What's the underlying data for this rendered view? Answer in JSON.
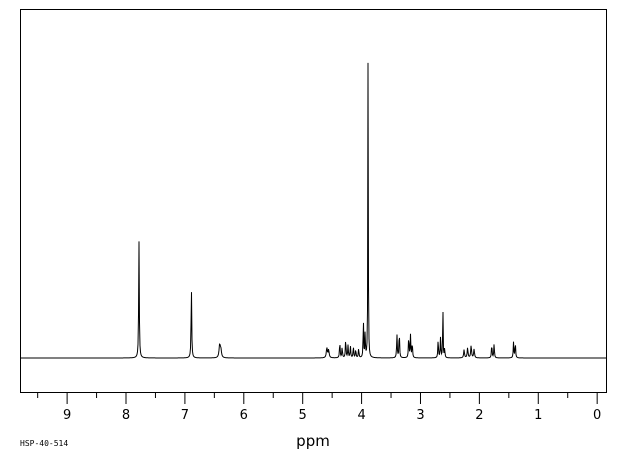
{
  "chart_data": {
    "type": "line",
    "title": "",
    "xlabel": "ppm",
    "ylabel": "",
    "xlim": [
      9.8,
      -0.15
    ],
    "ylim": [
      -0.1,
      1.0
    ],
    "x_reversed": true,
    "grid": false,
    "ticks": [
      "9",
      "8",
      "7",
      "6",
      "5",
      "4",
      "3",
      "2",
      "1",
      "0"
    ],
    "series": [
      {
        "peaks": [
          {
            "ppm": 7.78,
            "h": 0.37,
            "w": 0.006
          },
          {
            "ppm": 6.89,
            "h": 0.23,
            "w": 0.006
          },
          {
            "ppm": 6.41,
            "h": 0.04,
            "w": 0.012
          },
          {
            "ppm": 6.39,
            "h": 0.025,
            "w": 0.012
          },
          {
            "ppm": 4.59,
            "h": 0.032,
            "w": 0.01
          },
          {
            "ppm": 4.56,
            "h": 0.025,
            "w": 0.01
          },
          {
            "ppm": 4.37,
            "h": 0.052,
            "w": 0.006
          },
          {
            "ppm": 4.33,
            "h": 0.035,
            "w": 0.006
          },
          {
            "ppm": 4.27,
            "h": 0.062,
            "w": 0.006
          },
          {
            "ppm": 4.23,
            "h": 0.04,
            "w": 0.006
          },
          {
            "ppm": 4.19,
            "h": 0.038,
            "w": 0.006
          },
          {
            "ppm": 4.14,
            "h": 0.036,
            "w": 0.006
          },
          {
            "ppm": 4.1,
            "h": 0.028,
            "w": 0.006
          },
          {
            "ppm": 4.05,
            "h": 0.03,
            "w": 0.006
          },
          {
            "ppm": 3.97,
            "h": 0.13,
            "w": 0.005
          },
          {
            "ppm": 3.94,
            "h": 0.085,
            "w": 0.005
          },
          {
            "ppm": 3.89,
            "h": 1.0,
            "w": 0.004
          },
          {
            "ppm": 3.4,
            "h": 0.075,
            "w": 0.006
          },
          {
            "ppm": 3.36,
            "h": 0.085,
            "w": 0.006
          },
          {
            "ppm": 3.2,
            "h": 0.07,
            "w": 0.006
          },
          {
            "ppm": 3.17,
            "h": 0.072,
            "w": 0.006
          },
          {
            "ppm": 3.14,
            "h": 0.05,
            "w": 0.006
          },
          {
            "ppm": 2.7,
            "h": 0.058,
            "w": 0.006
          },
          {
            "ppm": 2.66,
            "h": 0.063,
            "w": 0.006
          },
          {
            "ppm": 2.62,
            "h": 0.19,
            "w": 0.004
          },
          {
            "ppm": 2.59,
            "h": 0.03,
            "w": 0.006
          },
          {
            "ppm": 2.26,
            "h": 0.026,
            "w": 0.008
          },
          {
            "ppm": 2.2,
            "h": 0.032,
            "w": 0.008
          },
          {
            "ppm": 2.14,
            "h": 0.04,
            "w": 0.008
          },
          {
            "ppm": 2.09,
            "h": 0.028,
            "w": 0.008
          },
          {
            "ppm": 1.79,
            "h": 0.045,
            "w": 0.006
          },
          {
            "ppm": 1.75,
            "h": 0.045,
            "w": 0.006
          },
          {
            "ppm": 1.42,
            "h": 0.05,
            "w": 0.006
          },
          {
            "ppm": 1.39,
            "h": 0.05,
            "w": 0.006
          }
        ]
      }
    ],
    "line_color": "#000000"
  },
  "footer": {
    "sample_code": "HSP-40-514"
  }
}
